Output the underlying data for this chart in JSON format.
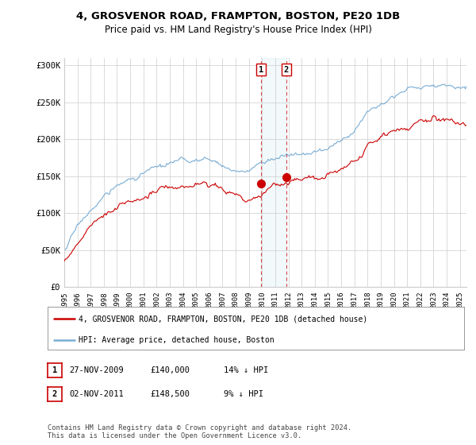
{
  "title_line1": "4, GROSVENOR ROAD, FRAMPTON, BOSTON, PE20 1DB",
  "title_line2": "Price paid vs. HM Land Registry's House Price Index (HPI)",
  "ylabel_ticks": [
    "£0",
    "£50K",
    "£100K",
    "£150K",
    "£200K",
    "£250K",
    "£300K"
  ],
  "ytick_values": [
    0,
    50000,
    100000,
    150000,
    200000,
    250000,
    300000
  ],
  "ylim": [
    0,
    310000
  ],
  "xlim_start": 1995.0,
  "xlim_end": 2025.5,
  "hpi_color": "#7aadd4",
  "price_color": "#cc0000",
  "transaction1_date": 2009.91,
  "transaction1_price": 140000,
  "transaction2_date": 2011.84,
  "transaction2_price": 148500,
  "legend_line1": "4, GROSVENOR ROAD, FRAMPTON, BOSTON, PE20 1DB (detached house)",
  "legend_line2": "HPI: Average price, detached house, Boston",
  "table_row1_num": "1",
  "table_row1_date": "27-NOV-2009",
  "table_row1_price": "£140,000",
  "table_row1_hpi": "14% ↓ HPI",
  "table_row2_num": "2",
  "table_row2_date": "02-NOV-2011",
  "table_row2_price": "£148,500",
  "table_row2_hpi": "9% ↓ HPI",
  "footer": "Contains HM Land Registry data © Crown copyright and database right 2024.\nThis data is licensed under the Open Government Licence v3.0.",
  "background_color": "#ffffff",
  "grid_color": "#cccccc"
}
